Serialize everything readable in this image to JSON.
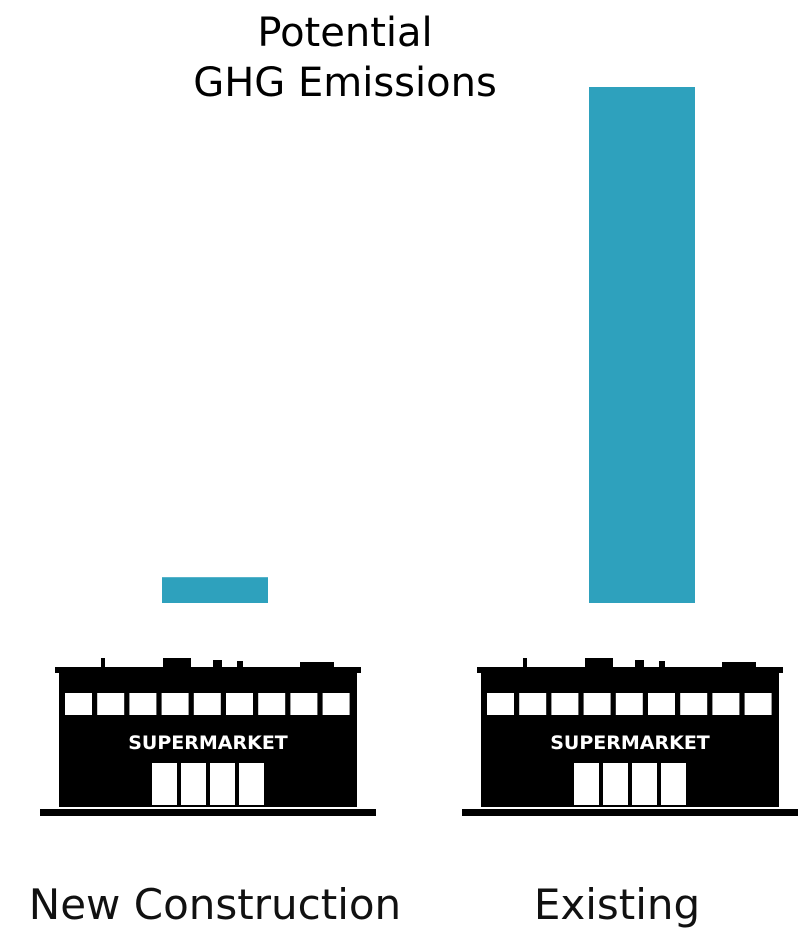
{
  "chart_data": {
    "type": "bar",
    "title": "Potential GHG Emissions",
    "title_lines": [
      "Potential",
      "GHG Emissions"
    ],
    "categories": [
      "New Construction",
      "Existing"
    ],
    "values": [
      5,
      100
    ],
    "ylim": [
      0,
      100
    ],
    "grid": false,
    "bar_color": "#2ea1bd",
    "building_sign": "SUPERMARKET",
    "building_icon": "supermarket-building-icon"
  }
}
